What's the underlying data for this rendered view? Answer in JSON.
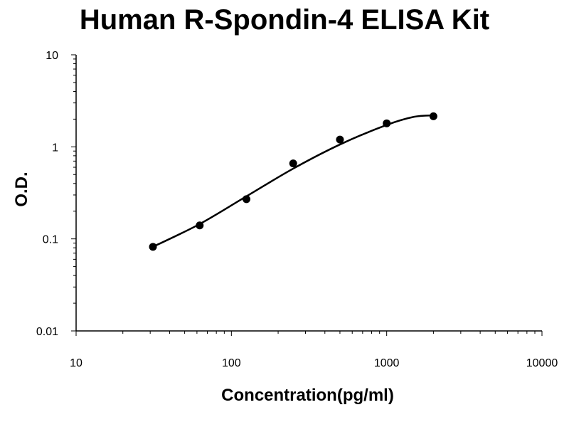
{
  "chart_data": {
    "type": "scatter",
    "title": "Human R-Spondin-4 ELISA Kit",
    "xlabel": "Concentration(pg/ml)",
    "ylabel": "O.D.",
    "xscale": "log",
    "yscale": "log",
    "xlim": [
      10,
      10000
    ],
    "ylim": [
      0.01,
      10
    ],
    "xticks": [
      10,
      100,
      1000,
      10000
    ],
    "xtick_labels": [
      "10",
      "100",
      "1000",
      "10000"
    ],
    "yticks": [
      0.01,
      0.1,
      1,
      10
    ],
    "ytick_labels": [
      "0.01",
      "0.1",
      "1",
      "10"
    ],
    "grid": false,
    "series": [
      {
        "type": "scatter",
        "x": [
          31.25,
          62.5,
          125,
          250,
          500,
          1000,
          2000
        ],
        "y": [
          0.082,
          0.14,
          0.27,
          0.66,
          1.2,
          1.8,
          2.15
        ]
      },
      {
        "type": "line",
        "x": [
          31.25,
          62.5,
          125,
          250,
          500,
          1000,
          1500,
          2000
        ],
        "y": [
          0.082,
          0.145,
          0.29,
          0.58,
          1.06,
          1.73,
          2.12,
          2.2
        ]
      }
    ],
    "colors": {
      "marker": "#000000",
      "line": "#000000",
      "axis": "#000000"
    }
  }
}
